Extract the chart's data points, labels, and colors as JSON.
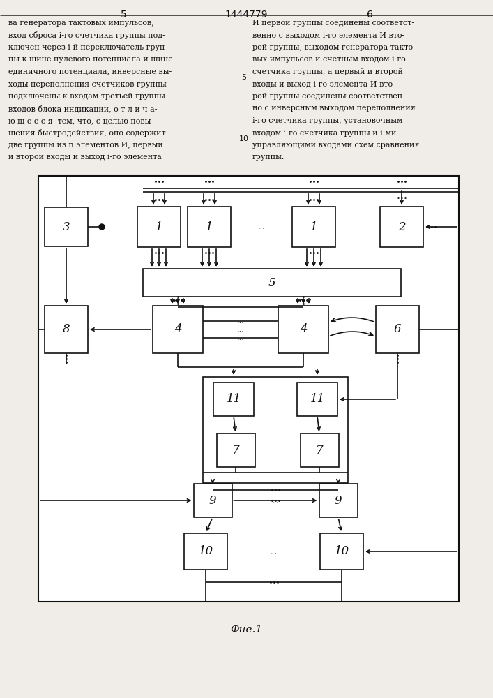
{
  "bg": "#f0ede8",
  "page_num_left": "5",
  "page_num_center": "1444779",
  "page_num_right": "6",
  "caption": "Фие.1",
  "text_left": [
    "ва генератора тактовых импульсов,",
    "вход сброса i-го счетчика группы под-",
    "ключен через i-й переключатель груп-",
    "пы к шине нулевого потенциала и шине",
    "единичного потенциала, инверсные вы-",
    "ходы переполнения счетчиков группы",
    "подключены к входам третьей группы",
    "входов блока индикации, о т л и ч а-",
    "ю щ е е с я  тем, что, с целью повы-",
    "шения быстродействия, оно содержит",
    "две группы из n элементов И, первый",
    "и второй входы и выход i-го элемента"
  ],
  "text_right": [
    "И первой группы соединены соответст-",
    "венно с выходом i-го элемента И вто-",
    "рой группы, выходом генератора такто-",
    "вых импульсов и счетным входом i-го",
    "счетчика группы, а первый и второй",
    "входы и выход i-го элемента И вто-",
    "рой группы соединены соответствен-",
    "но с инверсным выходом переполнения",
    "i-го счетчика группы, установочным",
    "входом i-го счетчика группы и i-ми",
    "управляющими входами схем сравнения",
    "группы."
  ]
}
